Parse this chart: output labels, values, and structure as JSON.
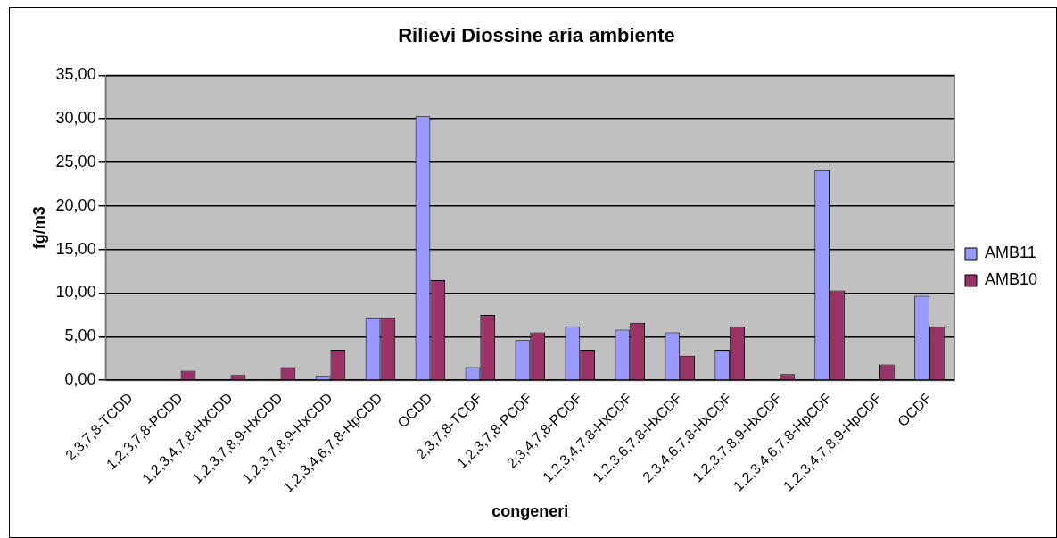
{
  "chart_data": {
    "type": "bar",
    "title": "Rilievi Diossine aria ambiente",
    "xlabel": "congeneri",
    "ylabel": "fg/m3",
    "categories": [
      "2,3,7,8-TCDD",
      "1,2,3,7,8-PCDD",
      "1,2,3,4,7,8-HxCDD",
      "1,2,3,7,8,9-HxCDD",
      "1,2,3,7,8,9-HxCDD",
      "1,2,3,4,6,7,8-HpCDD",
      "OCDD",
      "2,3,7,8-TCDF",
      "1,2,3,7,8-PCDF",
      "2,3,4,7,8-PCDF",
      "1,2,3,4,7,8-HxCDF",
      "1,2,3,6,7,8-HxCDF",
      "2,3,4,6,7,8-HxCDF",
      "1,2,3,7,8,9-HxCDF",
      "1,2,3,4,6,7,8-HpCDF",
      "1,2,3,4,7,8,9-HpCDF",
      "OCDF"
    ],
    "series": [
      {
        "name": "AMB11",
        "color": "#9999ff",
        "values": [
          0,
          0,
          0,
          0,
          0.5,
          7.2,
          30.3,
          1.5,
          4.6,
          6.2,
          5.8,
          5.5,
          3.5,
          0,
          24.1,
          0,
          9.7
        ]
      },
      {
        "name": "AMB10",
        "color": "#993366",
        "values": [
          0,
          1.1,
          0.6,
          1.5,
          3.5,
          7.2,
          11.5,
          7.5,
          5.5,
          3.5,
          6.6,
          2.8,
          6.2,
          0.7,
          10.3,
          1.8,
          6.2
        ]
      }
    ],
    "ylim": [
      0,
      35
    ],
    "yticks": [
      {
        "value": 0,
        "label": "0,00"
      },
      {
        "value": 5,
        "label": "5,00"
      },
      {
        "value": 10,
        "label": "10,00"
      },
      {
        "value": 15,
        "label": "15,00"
      },
      {
        "value": 20,
        "label": "20,00"
      },
      {
        "value": 25,
        "label": "25,00"
      },
      {
        "value": 30,
        "label": "30,00"
      },
      {
        "value": 35,
        "label": "35,00"
      }
    ],
    "grid": "y",
    "legend": "right"
  }
}
